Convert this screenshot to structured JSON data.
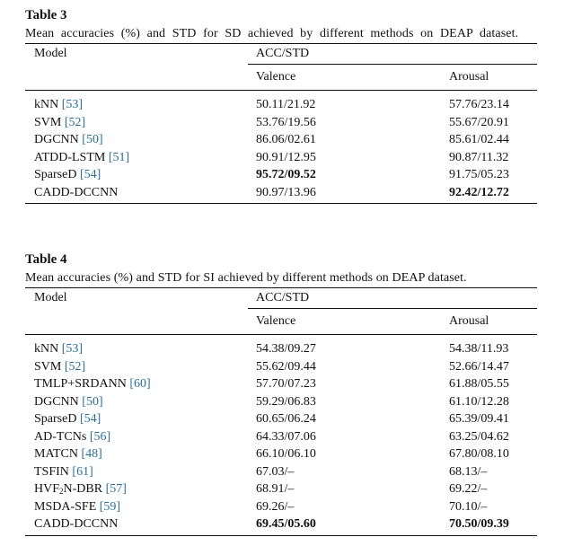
{
  "table3": {
    "label": "Table 3",
    "caption": "Mean accuracies (%) and STD for SD achieved by different methods on DEAP dataset.",
    "header_model": "Model",
    "header_group": "ACC/STD",
    "header_valence": "Valence",
    "header_arousal": "Arousal",
    "rows": [
      {
        "model": "kNN",
        "ref": "[53]",
        "valence": "50.11/21.92",
        "arousal": "57.76/23.14",
        "bold_valence": false,
        "bold_arousal": false
      },
      {
        "model": "SVM",
        "ref": "[52]",
        "valence": "53.76/19.56",
        "arousal": "55.67/20.91",
        "bold_valence": false,
        "bold_arousal": false
      },
      {
        "model": "DGCNN",
        "ref": "[50]",
        "valence": "86.06/02.61",
        "arousal": "85.61/02.44",
        "bold_valence": false,
        "bold_arousal": false
      },
      {
        "model": "ATDD-LSTM",
        "ref": "[51]",
        "valence": "90.91/12.95",
        "arousal": "90.87/11.32",
        "bold_valence": false,
        "bold_arousal": false
      },
      {
        "model": "SparseD",
        "ref": "[54]",
        "valence": "95.72/09.52",
        "arousal": "91.75/05.23",
        "bold_valence": true,
        "bold_arousal": false
      },
      {
        "model": "CADD-DCCNN",
        "ref": "",
        "valence": "90.97/13.96",
        "arousal": "92.42/12.72",
        "bold_valence": false,
        "bold_arousal": true
      }
    ]
  },
  "table4": {
    "label": "Table 4",
    "caption": "Mean accuracies (%) and STD for SI achieved by different methods on DEAP dataset.",
    "header_model": "Model",
    "header_group": "ACC/STD",
    "header_valence": "Valence",
    "header_arousal": "Arousal",
    "rows": [
      {
        "model": "kNN",
        "ref": "[53]",
        "valence": "54.38/09.27",
        "arousal": "54.38/11.93",
        "bold_valence": false,
        "bold_arousal": false
      },
      {
        "model": "SVM",
        "ref": "[52]",
        "valence": "55.62/09.44",
        "arousal": "52.66/14.47",
        "bold_valence": false,
        "bold_arousal": false
      },
      {
        "model": "TMLP+SRDANN",
        "ref": "[60]",
        "valence": "57.70/07.23",
        "arousal": "61.88/05.55",
        "bold_valence": false,
        "bold_arousal": false
      },
      {
        "model": "DGCNN",
        "ref": "[50]",
        "valence": "59.29/06.83",
        "arousal": "61.10/12.28",
        "bold_valence": false,
        "bold_arousal": false
      },
      {
        "model": "SparseD",
        "ref": "[54]",
        "valence": "60.65/06.24",
        "arousal": "65.39/09.41",
        "bold_valence": false,
        "bold_arousal": false
      },
      {
        "model": "AD-TCNs",
        "ref": "[56]",
        "valence": "64.33/07.06",
        "arousal": "63.25/04.62",
        "bold_valence": false,
        "bold_arousal": false
      },
      {
        "model": "MATCN",
        "ref": "[48]",
        "valence": "66.10/06.10",
        "arousal": "67.80/08.10",
        "bold_valence": false,
        "bold_arousal": false
      },
      {
        "model": "TSFIN",
        "ref": "[61]",
        "valence": "67.03/–",
        "arousal": "68.13/–",
        "bold_valence": false,
        "bold_arousal": false
      },
      {
        "model": "HVF",
        "model_sub": "2",
        "model_suffix": "N-DBR",
        "ref": "[57]",
        "valence": "68.91/–",
        "arousal": "69.22/–",
        "bold_valence": false,
        "bold_arousal": false
      },
      {
        "model": "MSDA-SFE",
        "ref": "[59]",
        "valence": "69.26/–",
        "arousal": "70.10/–",
        "bold_valence": false,
        "bold_arousal": false
      },
      {
        "model": "CADD-DCCNN",
        "ref": "",
        "valence": "69.45/05.60",
        "arousal": "70.50/09.39",
        "bold_valence": true,
        "bold_arousal": true
      }
    ]
  }
}
